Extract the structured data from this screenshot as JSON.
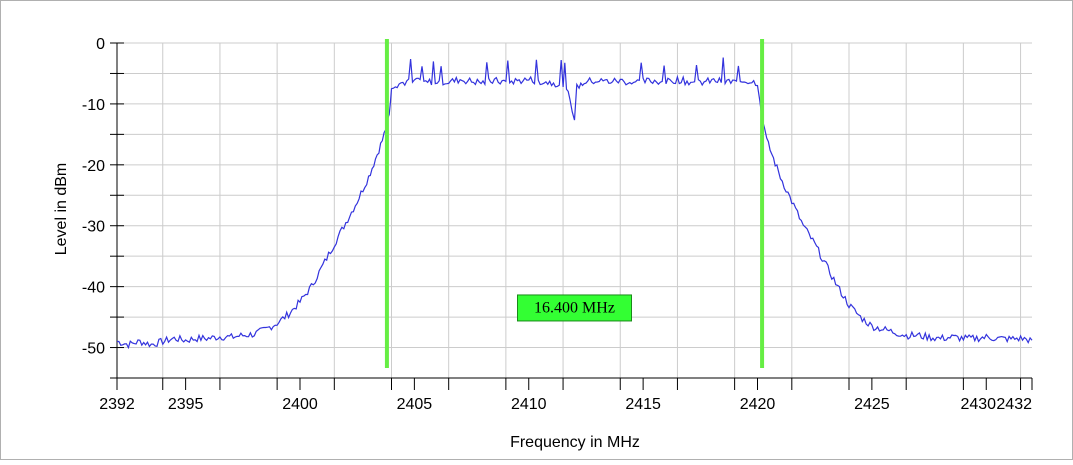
{
  "chart_data": {
    "type": "line",
    "xlabel": "Frequency in MHz",
    "ylabel": "Level in dBm",
    "xlim": [
      2392,
      2432
    ],
    "ylim": [
      -55,
      0
    ],
    "grid": true,
    "x_ticks": [
      {
        "value": 2392,
        "label": "2392"
      },
      {
        "value": 2395,
        "label": "2395"
      },
      {
        "value": 2400,
        "label": "2400"
      },
      {
        "value": 2405,
        "label": "2405"
      },
      {
        "value": 2410,
        "label": "2410"
      },
      {
        "value": 2415,
        "label": "2415"
      },
      {
        "value": 2420,
        "label": "2420"
      },
      {
        "value": 2425,
        "label": "2425"
      },
      {
        "value": 2430,
        "label": "2430"
      },
      {
        "value": 2432,
        "label": "2432"
      }
    ],
    "y_ticks": [
      {
        "value": 0,
        "label": "0"
      },
      {
        "value": -10,
        "label": "-10"
      },
      {
        "value": -20,
        "label": "-20"
      },
      {
        "value": -30,
        "label": "-30"
      },
      {
        "value": -40,
        "label": "-40"
      },
      {
        "value": -50,
        "label": "-50"
      }
    ],
    "series": [
      {
        "color": "#3333dd",
        "x": [
          2392,
          2392.5,
          2393,
          2393.5,
          2394,
          2394.5,
          2395,
          2395.5,
          2396,
          2396.5,
          2397,
          2397.5,
          2398,
          2398.5,
          2399,
          2399.5,
          2400,
          2400.5,
          2401,
          2401.5,
          2402,
          2402.5,
          2403,
          2403.3,
          2403.6,
          2403.9,
          2404,
          2404.5,
          2405,
          2405.5,
          2406,
          2406.5,
          2407,
          2407.5,
          2408,
          2408.5,
          2409,
          2409.5,
          2410,
          2410.5,
          2411,
          2411.5,
          2411.8,
          2412,
          2412.2,
          2412.5,
          2413,
          2413.5,
          2414,
          2414.5,
          2415,
          2415.5,
          2416,
          2416.5,
          2417,
          2417.5,
          2418,
          2418.5,
          2419,
          2419.5,
          2420,
          2420.2,
          2420.4,
          2420.7,
          2421,
          2421.5,
          2422,
          2422.5,
          2423,
          2423.5,
          2424,
          2424.5,
          2425,
          2425.5,
          2426,
          2426.5,
          2427,
          2427.5,
          2428,
          2428.5,
          2429,
          2429.5,
          2430,
          2430.5,
          2431,
          2431.5,
          2432
        ],
        "y": [
          -49,
          -49.5,
          -49,
          -49.5,
          -49,
          -48.5,
          -48.8,
          -48.5,
          -48.5,
          -48.2,
          -48.3,
          -48,
          -47.8,
          -47,
          -46,
          -44.5,
          -42.5,
          -40,
          -36.5,
          -33,
          -29.5,
          -26,
          -22,
          -19,
          -16,
          -12,
          -7,
          -6.5,
          -6.3,
          -6.5,
          -6.2,
          -6.4,
          -6,
          -6.3,
          -6.5,
          -6.2,
          -6.4,
          -6.2,
          -6,
          -6.3,
          -6.5,
          -6.8,
          -9,
          -12.5,
          -7,
          -6.3,
          -6.2,
          -6.3,
          -6.2,
          -6.5,
          -6.3,
          -6.2,
          -6.4,
          -6,
          -6.4,
          -6.5,
          -6.2,
          -6.3,
          -6.4,
          -6.2,
          -6.5,
          -12,
          -16,
          -19,
          -22,
          -26,
          -30,
          -33,
          -36.5,
          -40,
          -43,
          -45,
          -46.5,
          -47,
          -47.5,
          -48,
          -48,
          -48.3,
          -48.5,
          -48.3,
          -48.5,
          -48.5,
          -48.3,
          -48.5,
          -48.6,
          -48.5,
          -48.8
        ]
      }
    ],
    "markers": [
      {
        "x": 2403.8,
        "color": "#66ee44"
      },
      {
        "x": 2420.2,
        "color": "#66ee44"
      }
    ],
    "annotation": {
      "text": "16.400 MHz",
      "x": 2412,
      "y": -43.5,
      "bg": "#33ff33"
    }
  }
}
